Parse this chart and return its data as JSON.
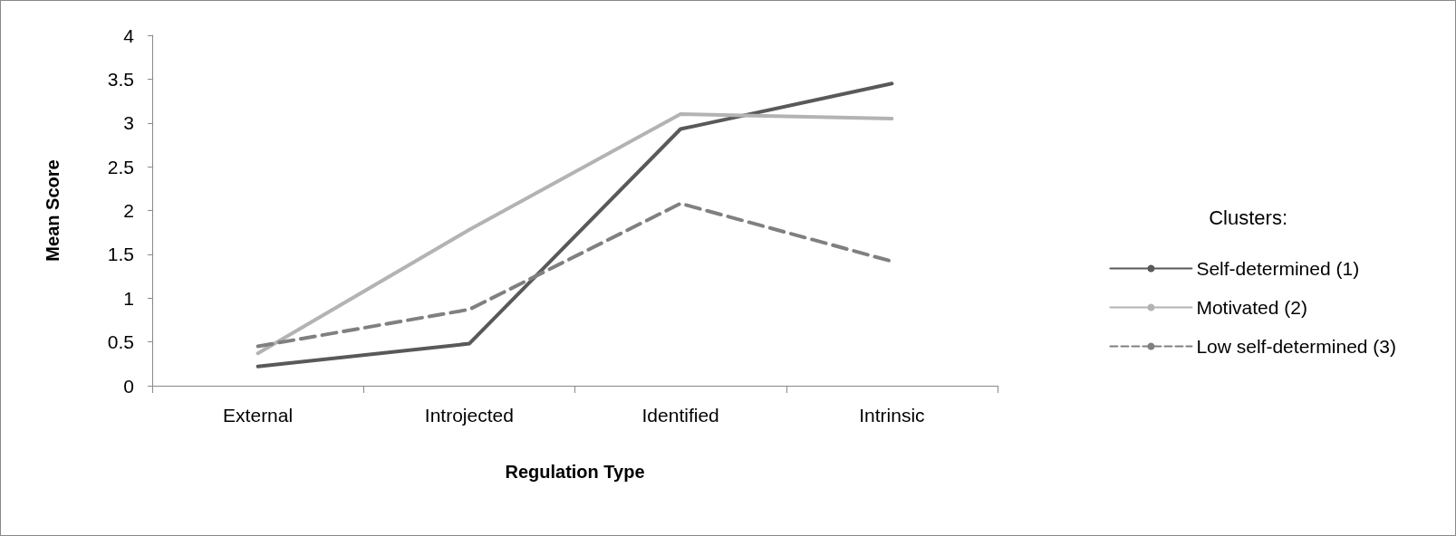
{
  "chart_data": {
    "type": "line",
    "xlabel": "Regulation Type",
    "ylabel": "Mean Score",
    "legend_title": "Clusters:",
    "categories": [
      "External",
      "Introjected",
      "Identified",
      "Intrinsic"
    ],
    "series": [
      {
        "name": "Self-determined (1)",
        "color": "#595959",
        "values": [
          0.22,
          0.48,
          2.93,
          3.45
        ],
        "line_style": "solid"
      },
      {
        "name": "Motivated (2)",
        "color": "#b3b3b3",
        "values": [
          0.37,
          1.78,
          3.1,
          3.05
        ],
        "line_style": "solid"
      },
      {
        "name": "Low self-determined (3)",
        "color": "#808080",
        "values": [
          0.45,
          0.87,
          2.08,
          1.42
        ],
        "line_style": "dashed"
      }
    ],
    "ylim": [
      0,
      4
    ],
    "yticks": [
      0,
      0.5,
      1,
      1.5,
      2,
      2.5,
      3,
      3.5,
      4
    ],
    "grid": false,
    "legend": "right",
    "marker": "none"
  }
}
